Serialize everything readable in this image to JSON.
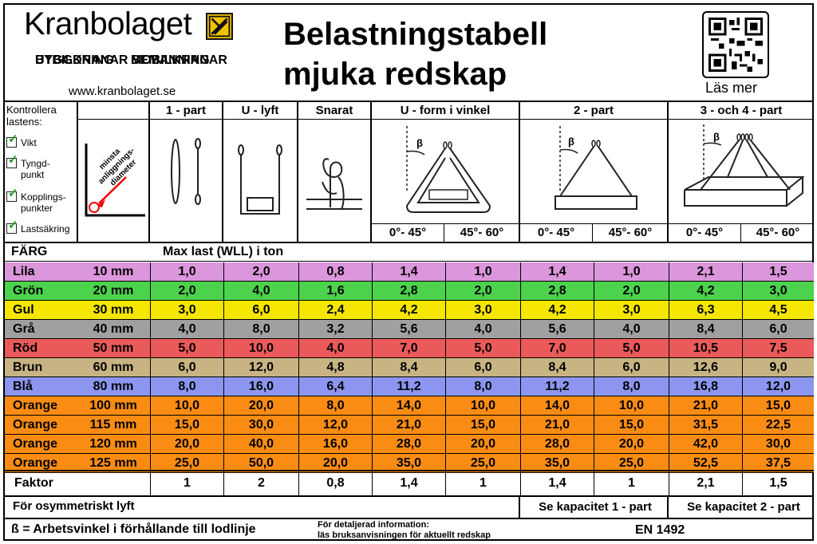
{
  "brand": {
    "name": "Kranbolaget",
    "services": [
      [
        "BYGGKRANAR",
        "MOBILKRANAR"
      ],
      [
        "UTBILDNING",
        "BEMANNING"
      ]
    ],
    "url": "www.kranbolaget.se"
  },
  "title": {
    "line1": "Belastningstabell",
    "line2": "mjuka redskap"
  },
  "qr": {
    "label": "Läs mer"
  },
  "check": {
    "heading": [
      "Kontrollera",
      "lastens:"
    ],
    "items": [
      [
        "Vikt"
      ],
      [
        "Tyngd-",
        "punkt"
      ],
      [
        "Kopplings-",
        "punkter"
      ],
      [
        "Lastsäkring"
      ]
    ]
  },
  "diagram": {
    "label": [
      "minsta",
      "anliggnings-",
      "diameter"
    ],
    "beta": "β"
  },
  "columns": [
    "1 - part",
    "U - lyft",
    "Snarat",
    "U - form i vinkel",
    "2 - part",
    "3 - och 4 - part"
  ],
  "angles": [
    "0°- 45°",
    "45°- 60°",
    "0°- 45°",
    "45°- 60°",
    "0°- 45°",
    "45°- 60°"
  ],
  "subheader": {
    "color": "FÄRG",
    "max": "Max last (WLL) i ton"
  },
  "rows": [
    {
      "color": "Lila",
      "size": "10 mm",
      "bg": "#dc96dc",
      "values": [
        "1,0",
        "2,0",
        "0,8",
        "1,4",
        "1,0",
        "1,4",
        "1,0",
        "2,1",
        "1,5"
      ]
    },
    {
      "color": "Grön",
      "size": "20 mm",
      "bg": "#4cd24c",
      "values": [
        "2,0",
        "4,0",
        "1,6",
        "2,8",
        "2,0",
        "2,8",
        "2,0",
        "4,2",
        "3,0"
      ]
    },
    {
      "color": "Gul",
      "size": "30 mm",
      "bg": "#f5e600",
      "values": [
        "3,0",
        "6,0",
        "2,4",
        "4,2",
        "3,0",
        "4,2",
        "3,0",
        "6,3",
        "4,5"
      ]
    },
    {
      "color": "Grå",
      "size": "40 mm",
      "bg": "#a0a0a0",
      "values": [
        "4,0",
        "8,0",
        "3,2",
        "5,6",
        "4,0",
        "5,6",
        "4,0",
        "8,4",
        "6,0"
      ]
    },
    {
      "color": "Röd",
      "size": "50 mm",
      "bg": "#eb5a5a",
      "values": [
        "5,0",
        "10,0",
        "4,0",
        "7,0",
        "5,0",
        "7,0",
        "5,0",
        "10,5",
        "7,5"
      ]
    },
    {
      "color": "Brun",
      "size": "60 mm",
      "bg": "#c8b482",
      "values": [
        "6,0",
        "12,0",
        "4,8",
        "8,4",
        "6,0",
        "8,4",
        "6,0",
        "12,6",
        "9,0"
      ]
    },
    {
      "color": "Blå",
      "size": "80 mm",
      "bg": "#8c96f0",
      "values": [
        "8,0",
        "16,0",
        "6,4",
        "11,2",
        "8,0",
        "11,2",
        "8,0",
        "16,8",
        "12,0"
      ]
    },
    {
      "color": "Orange",
      "size": "100 mm",
      "bg": "#fa8c14",
      "values": [
        "10,0",
        "20,0",
        "8,0",
        "14,0",
        "10,0",
        "14,0",
        "10,0",
        "21,0",
        "15,0"
      ]
    },
    {
      "color": "Orange",
      "size": "115 mm",
      "bg": "#fa8c14",
      "values": [
        "15,0",
        "30,0",
        "12,0",
        "21,0",
        "15,0",
        "21,0",
        "15,0",
        "31,5",
        "22,5"
      ]
    },
    {
      "color": "Orange",
      "size": "120 mm",
      "bg": "#fa8c14",
      "values": [
        "20,0",
        "40,0",
        "16,0",
        "28,0",
        "20,0",
        "28,0",
        "20,0",
        "42,0",
        "30,0"
      ]
    },
    {
      "color": "Orange",
      "size": "125 mm",
      "bg": "#fa8c14",
      "values": [
        "25,0",
        "50,0",
        "20,0",
        "35,0",
        "25,0",
        "35,0",
        "25,0",
        "52,5",
        "37,5"
      ]
    }
  ],
  "factor": {
    "label": "Faktor",
    "values": [
      "1",
      "2",
      "0,8",
      "1,4",
      "1",
      "1,4",
      "1",
      "2,1",
      "1,5"
    ]
  },
  "asym": {
    "label": "För osymmetriskt lyft",
    "two_part": "Se kapacitet 1 - part",
    "three_four_part": "Se kapacitet 2 - part"
  },
  "footer": {
    "beta": "ß = Arbetsvinkel i förhållande till lodlinje",
    "info": [
      "För detaljerad information:",
      "läs bruksanvisningen för aktuellt redskap"
    ],
    "standard": "EN 1492"
  }
}
